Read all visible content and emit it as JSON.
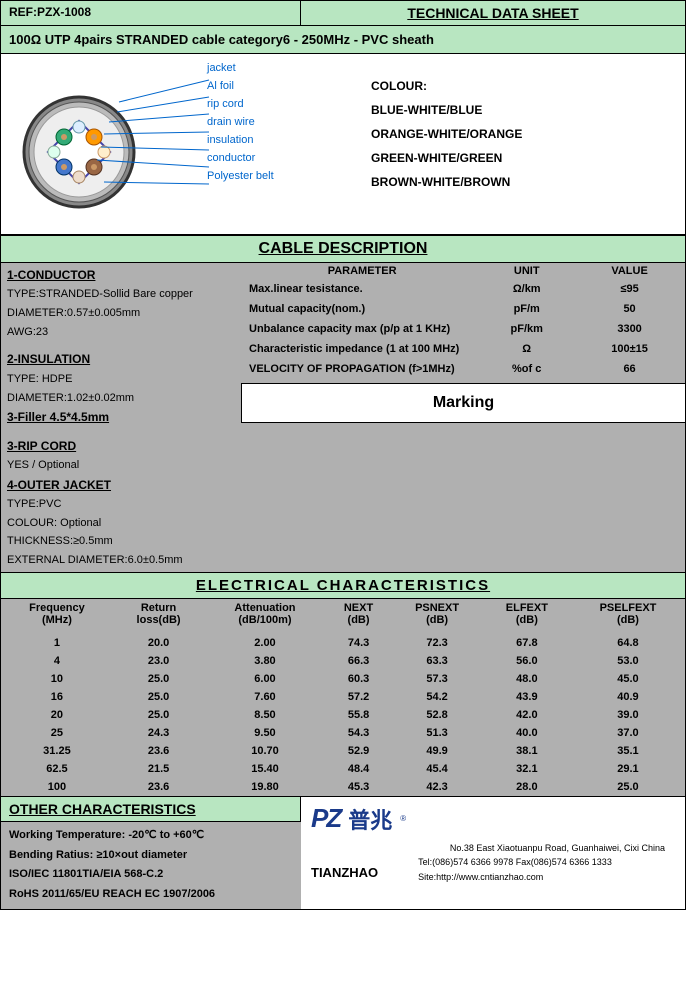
{
  "header": {
    "ref_label": "REF:",
    "ref_value": "PZX-1008",
    "title": "TECHNICAL DATA SHEET"
  },
  "spec_line": "100Ω  UTP  4pairs  STRANDED cable  category6 - 250MHz - PVC sheath",
  "diagram": {
    "labels": [
      "jacket",
      "Al foil",
      "rip cord",
      "drain wire",
      "insulation",
      "conductor",
      "Polyester belt"
    ],
    "colour_heading": "COLOUR:",
    "colours": [
      "BLUE-WHITE/BLUE",
      "ORANGE-WHITE/ORANGE",
      "GREEN-WHITE/GREEN",
      "BROWN-WHITE/BROWN"
    ]
  },
  "cable_desc_title": "CABLE  DESCRIPTION",
  "desc_left": {
    "s1_h": "1-CONDUCTOR",
    "s1_l1": "TYPE:STRANDED-Sollid Bare copper",
    "s1_l2": "DIAMETER:0.57±0.005mm",
    "s1_l3": "AWG:23",
    "s2_h": "2-INSULATION",
    "s2_l1": "TYPE: HDPE",
    "s2_l2": "DIAMETER:1.02±0.02mm",
    "s3_h": "3-Filler  4.5*4.5mm",
    "s4_h": "3-RIP CORD",
    "s4_l1": "YES / Optional",
    "s5_h": "4-OUTER JACKET",
    "s5_l1": "TYPE:PVC",
    "s5_l2": "COLOUR: Optional",
    "s5_l3": "THICKNESS:≥0.5mm",
    "s5_l4": "EXTERNAL DIAMETER:6.0±0.5mm"
  },
  "params": {
    "head_param": "PARAMETER",
    "head_unit": "UNIT",
    "head_value": "VALUE",
    "rows": [
      {
        "p": "Max.linear tesistance.",
        "u": "Ω/km",
        "v": "≤95"
      },
      {
        "p": "Mutual capacity(nom.)",
        "u": "pF/m",
        "v": "50"
      },
      {
        "p": "Unbalance capacity max (p/p at 1 KHz)",
        "u": "pF/km",
        "v": "3300"
      },
      {
        "p": "Characteristic impedance (1 at 100 MHz)",
        "u": "Ω",
        "v": "100±15"
      },
      {
        "p": "VELOCITY OF PROPAGATION (f>1MHz)",
        "u": "%of c",
        "v": "66"
      }
    ],
    "marking": "Marking"
  },
  "elec_title": "ELECTRICAL     CHARACTERISTICS",
  "elec_headers": [
    {
      "l1": "Frequency",
      "l2": "(MHz)"
    },
    {
      "l1": "Return",
      "l2": "loss(dB)"
    },
    {
      "l1": "Attenuation",
      "l2": "(dB/100m)"
    },
    {
      "l1": "NEXT",
      "l2": "(dB)"
    },
    {
      "l1": "PSNEXT",
      "l2": "(dB)"
    },
    {
      "l1": "ELFEXT",
      "l2": "(dB)"
    },
    {
      "l1": "PSELFEXT",
      "l2": "(dB)"
    }
  ],
  "elec_rows": [
    [
      "1",
      "20.0",
      "2.00",
      "74.3",
      "72.3",
      "67.8",
      "64.8"
    ],
    [
      "4",
      "23.0",
      "3.80",
      "66.3",
      "63.3",
      "56.0",
      "53.0"
    ],
    [
      "10",
      "25.0",
      "6.00",
      "60.3",
      "57.3",
      "48.0",
      "45.0"
    ],
    [
      "16",
      "25.0",
      "7.60",
      "57.2",
      "54.2",
      "43.9",
      "40.9"
    ],
    [
      "20",
      "25.0",
      "8.50",
      "55.8",
      "52.8",
      "42.0",
      "39.0"
    ],
    [
      "25",
      "24.3",
      "9.50",
      "54.3",
      "51.3",
      "40.0",
      "37.0"
    ],
    [
      "31.25",
      "23.6",
      "10.70",
      "52.9",
      "49.9",
      "38.1",
      "35.1"
    ],
    [
      "62.5",
      "21.5",
      "15.40",
      "48.4",
      "45.4",
      "32.1",
      "29.1"
    ],
    [
      "100",
      "23.6",
      "19.80",
      "45.3",
      "42.3",
      "28.0",
      "25.0"
    ]
  ],
  "other_title": "OTHER CHARACTERISTICS",
  "other_lines": [
    "Working Temperature: -20℃ to +60℃",
    "Bending Ratius: ≥10×out diameter",
    "ISO/IEC 11801TIA/EIA 568-C.2",
    "RoHS 2011/65/EU REACH EC 1907/2006"
  ],
  "footer": {
    "logo_pz": "PZ",
    "logo_cn": "普兆",
    "company": "TIANZHAO",
    "addr": "No.38 East Xiaotuanpu Road, Guanhaiwei,  Cixi China",
    "tel": "Tel:(086)574 6366 9978   Fax(086)574 6366 1333",
    "site": "Site:http://www.cntianzhao.com"
  },
  "colors": {
    "green": "#b8e6c1",
    "grey": "#b0b0b0",
    "link": "#0066cc",
    "logo": "#1a3a8a"
  }
}
